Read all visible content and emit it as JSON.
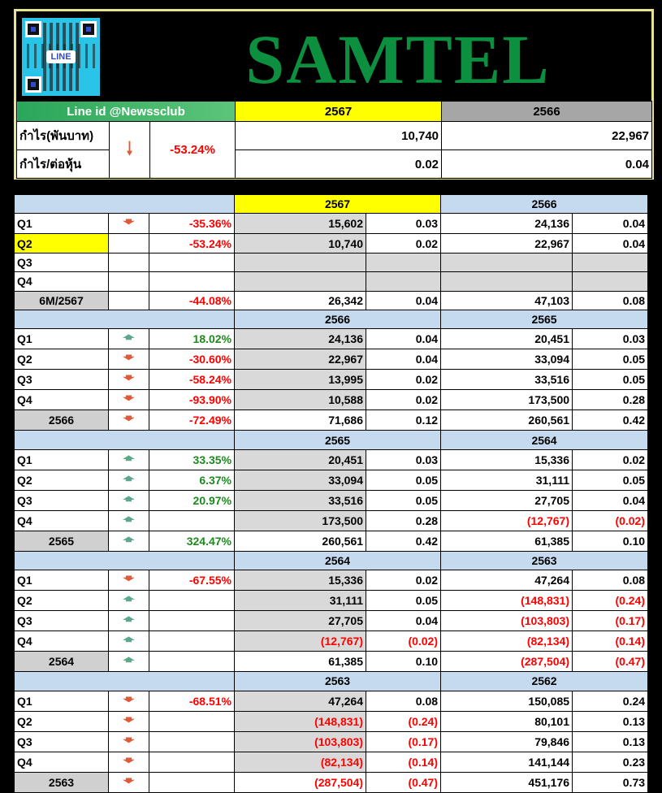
{
  "brand": "SAMTEL",
  "qr_logo_text": "LINE",
  "line_id": "Line id @Newssclub",
  "header": {
    "year_current": "2567",
    "year_prev": "2566",
    "profit_label": "กำไร(พันบาท)",
    "eps_label": "กำไร/ต่อหุ้น",
    "change_pct": "-53.24%",
    "profit_current": "10,740",
    "profit_prev": "22,967",
    "eps_current": "0.02",
    "eps_prev": "0.04"
  },
  "sections": [
    {
      "year_a": "2567",
      "year_b": "2566",
      "rows": [
        {
          "label": "Q1",
          "arrow": "down",
          "pct": "-35.36%",
          "pa": "15,602",
          "ea": "0.03",
          "pb": "24,136",
          "eb": "0.04"
        },
        {
          "label": "Q2",
          "arrow": "",
          "pct": "-53.24%",
          "pa": "10,740",
          "ea": "0.02",
          "pb": "22,967",
          "eb": "0.04"
        },
        {
          "label": "Q3",
          "arrow": "",
          "pct": "",
          "pa": "",
          "ea": "",
          "pb": "",
          "eb": ""
        },
        {
          "label": "Q4",
          "arrow": "",
          "pct": "",
          "pa": "",
          "ea": "",
          "pb": "",
          "eb": ""
        }
      ],
      "total": {
        "label": "6M/2567",
        "arrow": "",
        "pct": "-44.08%",
        "pa": "26,342",
        "ea": "0.04",
        "pb": "47,103",
        "eb": "0.08"
      }
    },
    {
      "year_a": "2566",
      "year_b": "2565",
      "rows": [
        {
          "label": "Q1",
          "arrow": "up",
          "pct": "18.02%",
          "pa": "24,136",
          "ea": "0.04",
          "pb": "20,451",
          "eb": "0.03"
        },
        {
          "label": "Q2",
          "arrow": "down",
          "pct": "-30.60%",
          "pa": "22,967",
          "ea": "0.04",
          "pb": "33,094",
          "eb": "0.05"
        },
        {
          "label": "Q3",
          "arrow": "down",
          "pct": "-58.24%",
          "pa": "13,995",
          "ea": "0.02",
          "pb": "33,516",
          "eb": "0.05"
        },
        {
          "label": "Q4",
          "arrow": "down",
          "pct": "-93.90%",
          "pa": "10,588",
          "ea": "0.02",
          "pb": "173,500",
          "eb": "0.28"
        }
      ],
      "total": {
        "label": "2566",
        "arrow": "down",
        "pct": "-72.49%",
        "pa": "71,686",
        "ea": "0.12",
        "pb": "260,561",
        "eb": "0.42"
      }
    },
    {
      "year_a": "2565",
      "year_b": "2564",
      "rows": [
        {
          "label": "Q1",
          "arrow": "up",
          "pct": "33.35%",
          "pa": "20,451",
          "ea": "0.03",
          "pb": "15,336",
          "eb": "0.02"
        },
        {
          "label": "Q2",
          "arrow": "up",
          "pct": "6.37%",
          "pa": "33,094",
          "ea": "0.05",
          "pb": "31,111",
          "eb": "0.05"
        },
        {
          "label": "Q3",
          "arrow": "up",
          "pct": "20.97%",
          "pa": "33,516",
          "ea": "0.05",
          "pb": "27,705",
          "eb": "0.04"
        },
        {
          "label": "Q4",
          "arrow": "up",
          "pct": "",
          "pa": "173,500",
          "ea": "0.28",
          "pb": "(12,767)",
          "eb": "(0.02)"
        }
      ],
      "total": {
        "label": "2565",
        "arrow": "up",
        "pct": "324.47%",
        "pa": "260,561",
        "ea": "0.42",
        "pb": "61,385",
        "eb": "0.10"
      }
    },
    {
      "year_a": "2564",
      "year_b": "2563",
      "rows": [
        {
          "label": "Q1",
          "arrow": "down",
          "pct": "-67.55%",
          "pa": "15,336",
          "ea": "0.02",
          "pb": "47,264",
          "eb": "0.08"
        },
        {
          "label": "Q2",
          "arrow": "up",
          "pct": "",
          "pa": "31,111",
          "ea": "0.05",
          "pb": "(148,831)",
          "eb": "(0.24)"
        },
        {
          "label": "Q3",
          "arrow": "up",
          "pct": "",
          "pa": "27,705",
          "ea": "0.04",
          "pb": "(103,803)",
          "eb": "(0.17)"
        },
        {
          "label": "Q4",
          "arrow": "up",
          "pct": "",
          "pa": "(12,767)",
          "ea": "(0.02)",
          "pb": "(82,134)",
          "eb": "(0.14)"
        }
      ],
      "total": {
        "label": "2564",
        "arrow": "up",
        "pct": "",
        "pa": "61,385",
        "ea": "0.10",
        "pb": "(287,504)",
        "eb": "(0.47)"
      }
    },
    {
      "year_a": "2563",
      "year_b": "2562",
      "rows": [
        {
          "label": "Q1",
          "arrow": "down",
          "pct": "-68.51%",
          "pa": "47,264",
          "ea": "0.08",
          "pb": "150,085",
          "eb": "0.24"
        },
        {
          "label": "Q2",
          "arrow": "down",
          "pct": "",
          "pa": "(148,831)",
          "ea": "(0.24)",
          "pb": "80,101",
          "eb": "0.13"
        },
        {
          "label": "Q3",
          "arrow": "down",
          "pct": "",
          "pa": "(103,803)",
          "ea": "(0.17)",
          "pb": "79,846",
          "eb": "0.13"
        },
        {
          "label": "Q4",
          "arrow": "down",
          "pct": "",
          "pa": "(82,134)",
          "ea": "(0.14)",
          "pb": "141,144",
          "eb": "0.23"
        }
      ],
      "total": {
        "label": "2563",
        "arrow": "down",
        "pct": "",
        "pa": "(287,504)",
        "ea": "(0.47)",
        "pb": "451,176",
        "eb": "0.73"
      }
    }
  ]
}
